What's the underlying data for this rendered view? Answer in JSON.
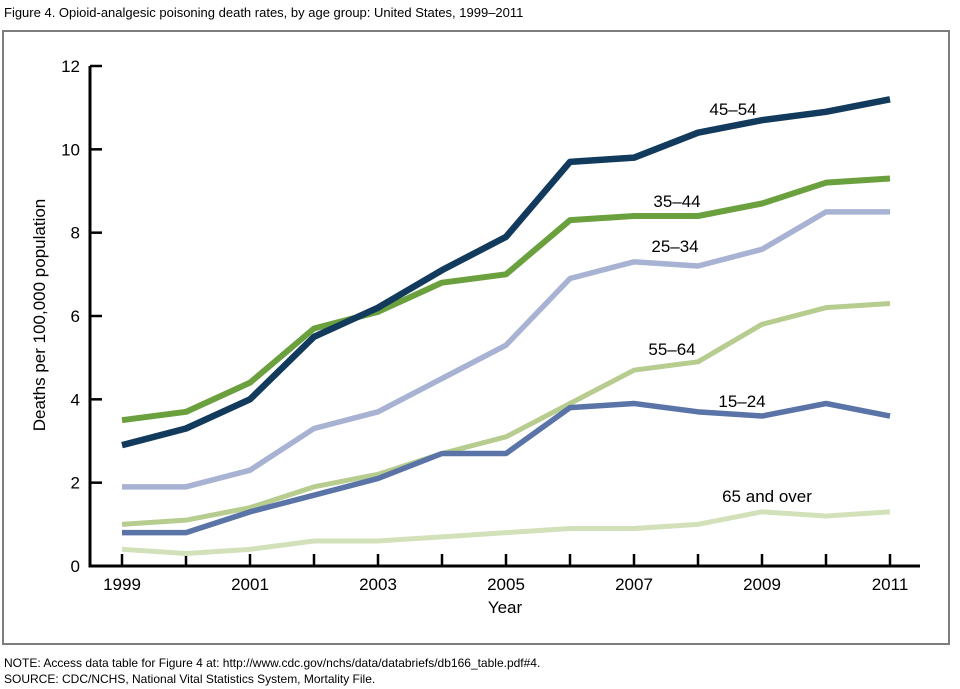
{
  "title": "Figure 4. Opioid-analgesic poisoning death rates, by age group: United States, 1999–2011",
  "note": "NOTE: Access data table for Figure 4 at: http://www.cdc.gov/nchs/data/databriefs/db166_table.pdf#4.",
  "source": "SOURCE: CDC/NCHS, National Vital Statistics System, Mortality File.",
  "chart_data": {
    "type": "line",
    "title": "Figure 4. Opioid-analgesic poisoning death rates, by age group: United States, 1999–2011",
    "xlabel": "Year",
    "ylabel": "Deaths per 100,000 population",
    "x": [
      1999,
      2000,
      2001,
      2002,
      2003,
      2004,
      2005,
      2006,
      2007,
      2008,
      2009,
      2010,
      2011
    ],
    "x_tick_labels": [
      1999,
      2001,
      2003,
      2005,
      2007,
      2009,
      2011
    ],
    "y_ticks": [
      0,
      2,
      4,
      6,
      8,
      10,
      12
    ],
    "ylim": [
      0,
      12
    ],
    "grid": false,
    "legend": "inline-labels",
    "axis_color": "#000000",
    "series": [
      {
        "key": "65-and-over",
        "name": "65 and over",
        "color": "#d3e1ba",
        "stroke_width": 5,
        "values": [
          0.4,
          0.3,
          0.4,
          0.6,
          0.6,
          0.7,
          0.8,
          0.9,
          0.9,
          1.0,
          1.3,
          1.2,
          1.3
        ]
      },
      {
        "key": "55-64",
        "name": "55–64",
        "color": "#b7cc8f",
        "stroke_width": 5,
        "values": [
          1.0,
          1.1,
          1.4,
          1.9,
          2.2,
          2.7,
          3.1,
          3.9,
          4.7,
          4.9,
          5.8,
          6.2,
          6.3
        ]
      },
      {
        "key": "15-24",
        "name": "15–24",
        "color": "#5a74a8",
        "stroke_width": 5.5,
        "values": [
          0.8,
          0.8,
          1.3,
          1.7,
          2.1,
          2.7,
          2.7,
          3.8,
          3.9,
          3.7,
          3.6,
          3.9,
          3.6
        ]
      },
      {
        "key": "25-34",
        "name": "25–34",
        "color": "#a8b3d3",
        "stroke_width": 5.5,
        "values": [
          1.9,
          1.9,
          2.3,
          3.3,
          3.7,
          4.5,
          5.3,
          6.9,
          7.3,
          7.2,
          7.6,
          8.5,
          8.5
        ]
      },
      {
        "key": "35-44",
        "name": "35–44",
        "color": "#6ba03e",
        "stroke_width": 6,
        "values": [
          3.5,
          3.7,
          4.4,
          5.7,
          6.1,
          6.8,
          7.0,
          8.3,
          8.4,
          8.4,
          8.7,
          9.2,
          9.3
        ]
      },
      {
        "key": "45-54",
        "name": "45–54",
        "color": "#123a5d",
        "stroke_width": 6.5,
        "values": [
          2.9,
          3.3,
          4.0,
          5.5,
          6.2,
          7.1,
          7.9,
          9.7,
          9.8,
          10.4,
          10.7,
          10.9,
          11.2
        ]
      }
    ]
  }
}
